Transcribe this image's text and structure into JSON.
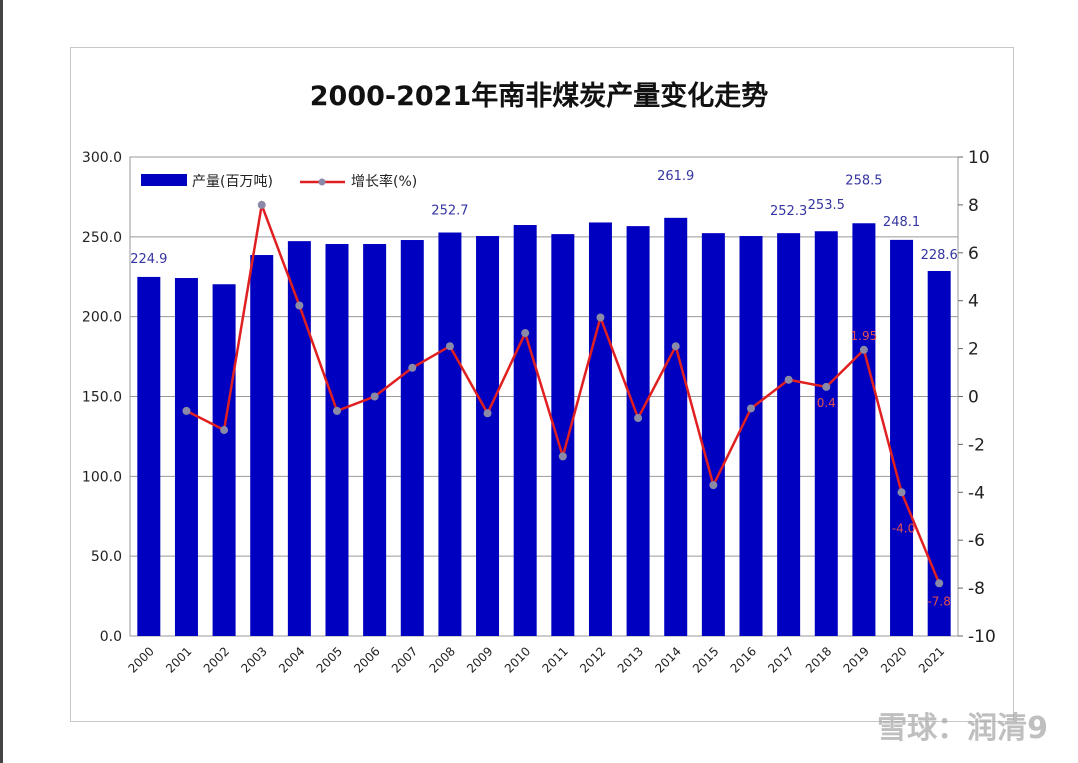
{
  "chart_data": {
    "type": "bar+line",
    "title": "2000-2021年南非煤炭产量变化走势",
    "categories": [
      "2000",
      "2001",
      "2002",
      "2003",
      "2004",
      "2005",
      "2006",
      "2007",
      "2008",
      "2009",
      "2010",
      "2011",
      "2012",
      "2013",
      "2014",
      "2015",
      "2016",
      "2017",
      "2018",
      "2019",
      "2020",
      "2021"
    ],
    "series": [
      {
        "name": "产量(百万吨)",
        "type": "bar",
        "axis": "left",
        "color": "#0000c0",
        "values": [
          224.9,
          224.2,
          220.3,
          238.6,
          247.3,
          245.5,
          245.5,
          248.0,
          252.7,
          250.5,
          257.4,
          251.7,
          259.0,
          256.7,
          261.9,
          252.3,
          250.5,
          252.3,
          253.5,
          258.5,
          248.1,
          228.6
        ],
        "labels": {
          "2000": "224.9",
          "2008": "252.7",
          "2014": "261.9",
          "2017": "252.3",
          "2018": "253.5",
          "2019": "258.5",
          "2020": "248.1",
          "2021": "228.6"
        }
      },
      {
        "name": "增长率(%)",
        "type": "line",
        "axis": "right",
        "color": "#e02020",
        "values": [
          null,
          -0.6,
          -1.4,
          8.0,
          3.8,
          -0.6,
          0.0,
          1.2,
          2.1,
          -0.7,
          2.65,
          -2.5,
          3.3,
          -0.9,
          2.1,
          -3.7,
          -0.5,
          0.7,
          0.4,
          1.95,
          -4.0,
          -7.8
        ],
        "labels": {
          "2018": "0.4",
          "2019": "1.95",
          "2020": "-4.0",
          "2021": "-7.8"
        }
      }
    ],
    "yleft": {
      "lim": [
        0,
        300
      ],
      "ticks": [
        "0.0",
        "50.0",
        "100.0",
        "150.0",
        "200.0",
        "250.0",
        "300.0"
      ]
    },
    "yright": {
      "lim": [
        -10,
        10
      ],
      "ticks": [
        "-10",
        "-8",
        "-6",
        "-4",
        "-2",
        "0",
        "2",
        "4",
        "6",
        "8",
        "10"
      ]
    },
    "grid": true,
    "legend": "top-left"
  },
  "watermark": "雪球：润清9"
}
